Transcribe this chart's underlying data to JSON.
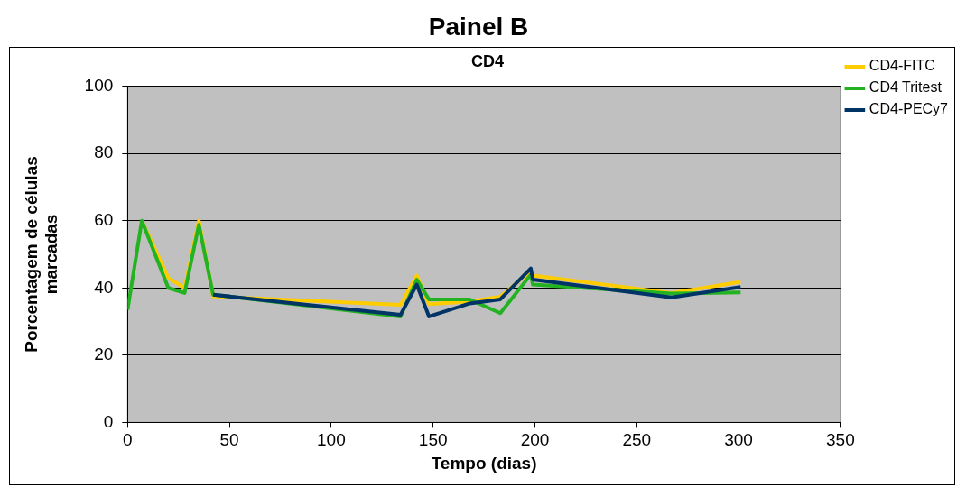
{
  "chart_data": {
    "type": "line",
    "title": "Painel B",
    "subtitle": "CD4",
    "xlabel": "Tempo (dias)",
    "ylabel": "Porcentagem de células marcadas",
    "x": [
      0,
      7,
      20,
      28,
      35,
      42,
      134,
      142,
      148,
      168,
      183,
      198,
      199,
      267,
      301
    ],
    "series": [
      {
        "name": "CD4-FITC",
        "color": "#ffcc00",
        "values": [
          null,
          60,
          43,
          40,
          60,
          37.5,
          35,
          43.7,
          35.2,
          36,
          37.4,
          45,
          43.7,
          38.5,
          41.8
        ]
      },
      {
        "name": "CD4 Tritest",
        "color": "#22b222",
        "values": [
          33.5,
          60,
          40,
          38.5,
          58.8,
          38,
          31.5,
          42.5,
          36.6,
          36.6,
          32.5,
          44,
          41,
          38.3,
          38.7
        ]
      },
      {
        "name": "CD4-PECy7",
        "color": "#003366",
        "values": [
          null,
          null,
          null,
          null,
          null,
          38,
          32,
          41,
          31.5,
          35.4,
          36.6,
          45.8,
          42.5,
          37.2,
          40.3
        ]
      }
    ],
    "xlim": [
      0,
      350
    ],
    "xticks": [
      0,
      50,
      100,
      150,
      200,
      250,
      300,
      350
    ],
    "ylim": [
      0,
      100
    ],
    "yticks": [
      0,
      20,
      40,
      60,
      80,
      100
    ],
    "grid": "y",
    "legend": "top right",
    "marker": "none",
    "line_style": "solid"
  }
}
